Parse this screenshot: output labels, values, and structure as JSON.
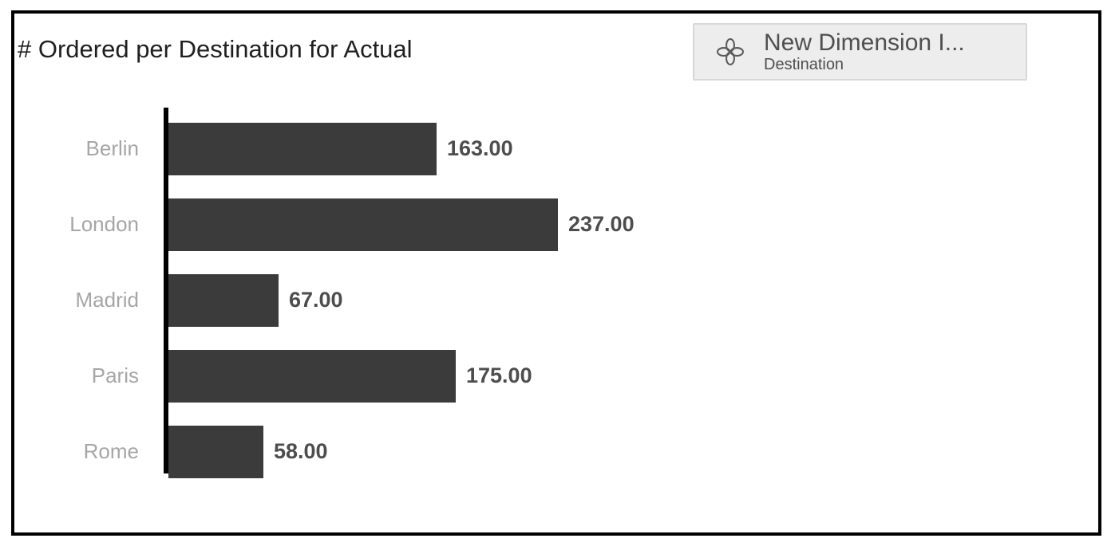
{
  "chart_data": {
    "type": "bar",
    "orientation": "horizontal",
    "title": "# Ordered per Destination for Actual",
    "categories": [
      "Berlin",
      "London",
      "Madrid",
      "Paris",
      "Rome"
    ],
    "values": [
      163,
      237,
      67,
      175,
      58
    ],
    "value_labels": [
      "163.00",
      "237.00",
      "67.00",
      "175.00",
      "58.00"
    ],
    "data_labels_shown": true,
    "grid": false,
    "legend": false,
    "axis_line": "left"
  },
  "input_control": {
    "name": "New Dimension I...",
    "dimension": "Destination",
    "icon": "clover-icon"
  },
  "colors": {
    "bar": "#3b3b3b",
    "axis": "#000000",
    "category_label": "#a6a6a6",
    "value_label": "#4d4d4d",
    "title_text": "#1f1f1f",
    "widget_bg": "#ededed",
    "widget_border": "#d7d7d7",
    "widget_text": "#4f4f4f",
    "frame_border": "#000000"
  }
}
